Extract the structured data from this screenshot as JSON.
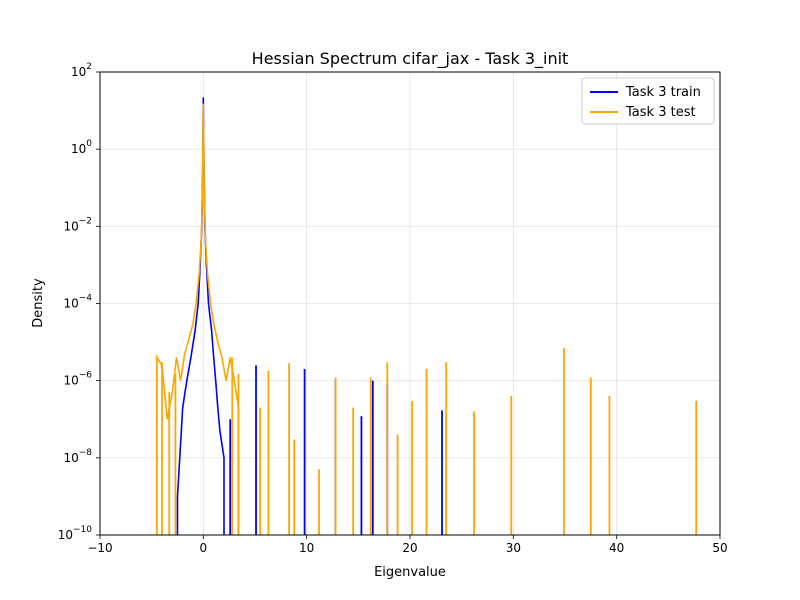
{
  "chart_data": {
    "type": "line",
    "title": "Hessian Spectrum cifar_jax - Task 3_init",
    "xlabel": "Eigenvalue",
    "ylabel": "Density",
    "yscale": "log",
    "xlim": [
      -10,
      50
    ],
    "ylim_exp": [
      -10,
      2
    ],
    "x_ticks": [
      "−10",
      "0",
      "10",
      "20",
      "30",
      "40",
      "50"
    ],
    "y_tick_exps": [
      "−10",
      "−8",
      "−6",
      "−4",
      "−2",
      "0",
      "2"
    ],
    "grid": true,
    "legend_position": "top-right",
    "series": [
      {
        "name": "Task 3 train",
        "color": "#0000ff",
        "center": [
          [
            -2.5,
            1e-09
          ],
          [
            -2.0,
            2e-07
          ],
          [
            -1.6,
            1e-06
          ],
          [
            -1.2,
            4e-06
          ],
          [
            -0.8,
            2e-05
          ],
          [
            -0.5,
            0.0001
          ],
          [
            -0.3,
            0.001
          ],
          [
            -0.15,
            0.01
          ],
          [
            -0.05,
            0.5
          ],
          [
            0.0,
            22
          ],
          [
            0.05,
            0.5
          ],
          [
            0.15,
            0.01
          ],
          [
            0.3,
            0.001
          ],
          [
            0.5,
            0.0001
          ],
          [
            0.8,
            2e-05
          ],
          [
            1.0,
            4e-06
          ],
          [
            1.2,
            1e-06
          ],
          [
            1.4,
            2e-07
          ],
          [
            1.6,
            5e-08
          ],
          [
            2.0,
            1e-08
          ]
        ],
        "spikes": [
          [
            2.6,
            1e-07
          ],
          [
            5.1,
            2.5e-06
          ],
          [
            9.8,
            2e-06
          ],
          [
            12.8,
            1e-06
          ],
          [
            15.3,
            1.2e-07
          ],
          [
            16.4,
            1e-06
          ],
          [
            17.8,
            8e-07
          ],
          [
            23.1,
            1.7e-07
          ]
        ]
      },
      {
        "name": "Task 3 test",
        "color": "#ffa500",
        "center": [
          [
            -4.5,
            4e-06
          ],
          [
            -4.0,
            2.5e-06
          ],
          [
            -3.5,
            1e-07
          ],
          [
            -3.0,
            5e-07
          ],
          [
            -2.6,
            4e-06
          ],
          [
            -2.2,
            1e-06
          ],
          [
            -1.8,
            5e-06
          ],
          [
            -1.4,
            1.2e-05
          ],
          [
            -1.0,
            3e-05
          ],
          [
            -0.7,
            0.0001
          ],
          [
            -0.4,
            0.0006
          ],
          [
            -0.2,
            0.005
          ],
          [
            -0.08,
            0.1
          ],
          [
            0.0,
            15
          ],
          [
            0.08,
            0.1
          ],
          [
            0.2,
            0.005
          ],
          [
            0.4,
            0.0006
          ],
          [
            0.7,
            0.0001
          ],
          [
            1.0,
            3e-05
          ],
          [
            1.4,
            1e-05
          ],
          [
            1.8,
            4e-06
          ],
          [
            2.2,
            1e-06
          ],
          [
            2.6,
            4e-06
          ],
          [
            3.0,
            1e-06
          ],
          [
            3.4,
            2e-07
          ]
        ],
        "spikes": [
          [
            -4.5,
            4.5e-06
          ],
          [
            -4.0,
            3e-06
          ],
          [
            -3.3,
            5e-07
          ],
          [
            -2.7,
            1.5e-06
          ],
          [
            2.8,
            4e-06
          ],
          [
            3.4,
            1.5e-06
          ],
          [
            5.5,
            2e-07
          ],
          [
            6.3,
            1.8e-06
          ],
          [
            8.3,
            2.8e-06
          ],
          [
            8.8,
            3e-08
          ],
          [
            11.2,
            5e-09
          ],
          [
            12.8,
            1.2e-06
          ],
          [
            14.5,
            2e-07
          ],
          [
            16.2,
            1.2e-06
          ],
          [
            17.8,
            3e-06
          ],
          [
            18.8,
            4e-08
          ],
          [
            20.2,
            3e-07
          ],
          [
            21.6,
            2e-06
          ],
          [
            23.5,
            3e-06
          ],
          [
            26.2,
            1.6e-07
          ],
          [
            29.8,
            4e-07
          ],
          [
            34.9,
            7e-06
          ],
          [
            37.5,
            1.2e-06
          ],
          [
            39.3,
            4e-07
          ],
          [
            47.7,
            3e-07
          ]
        ]
      }
    ]
  }
}
